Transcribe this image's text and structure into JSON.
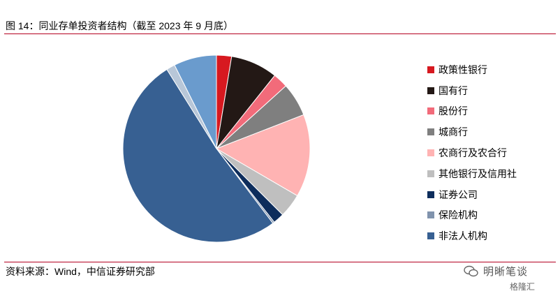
{
  "figure": {
    "title": "图 14：同业存单投资者结构（截至 2023 年 9 月底）",
    "source": "资料来源：Wind，中信证券研究部"
  },
  "watermark": {
    "text": "明晰笔谈",
    "sub": "格隆汇",
    "icon": "wechat-bubble-icon"
  },
  "colors": {
    "rule": "#b40020"
  },
  "chart_data": {
    "type": "pie",
    "title": "",
    "start_angle_deg": 0,
    "direction": "clockwise",
    "legend_position": "right",
    "slices": [
      {
        "label": "政策性银行",
        "value": 2.6,
        "color": "#d71920"
      },
      {
        "label": "国有行",
        "value": 8.1,
        "color": "#231815"
      },
      {
        "label": "股份行",
        "value": 2.6,
        "color": "#f26b7a"
      },
      {
        "label": "城商行",
        "value": 5.8,
        "color": "#7f7f7f"
      },
      {
        "label": "农商行及农合行",
        "value": 14.3,
        "color": "#ffb3b3"
      },
      {
        "label": "其他银行及信用社",
        "value": 4.1,
        "color": "#bfbfbf"
      },
      {
        "label": "证券公司",
        "value": 1.9,
        "color": "#0d2d5c"
      },
      {
        "label": "保险机构",
        "value": 0.3,
        "color": "#8093ad"
      },
      {
        "label": "非法人机构",
        "value": 51.4,
        "color": "#376092"
      },
      {
        "label": "",
        "value": 1.5,
        "color": "#b8c7d8"
      },
      {
        "label": "",
        "value": 7.4,
        "color": "#6a9bcd"
      }
    ]
  }
}
